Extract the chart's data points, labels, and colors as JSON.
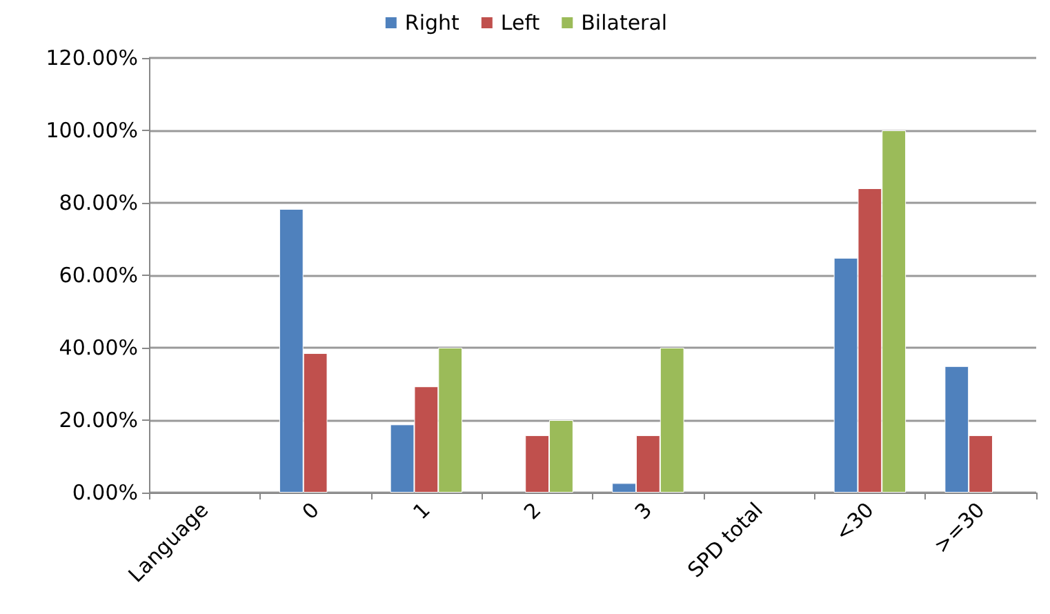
{
  "chart_data": {
    "type": "bar",
    "categories": [
      "Language",
      "0",
      "1",
      "2",
      "3",
      "SPD total",
      "<30",
      ">=30"
    ],
    "series": [
      {
        "name": "Right",
        "color": "#4f81bd",
        "values": [
          null,
          78.3,
          18.8,
          null,
          2.6,
          null,
          64.8,
          34.9
        ]
      },
      {
        "name": "Left",
        "color": "#c0504d",
        "values": [
          null,
          38.5,
          29.3,
          15.8,
          15.8,
          null,
          84.0,
          15.8
        ]
      },
      {
        "name": "Bilateral",
        "color": "#9bbb59",
        "values": [
          null,
          null,
          40,
          20,
          40,
          null,
          100,
          null
        ]
      }
    ],
    "ylim": [
      0,
      120
    ],
    "yticks": [
      {
        "value": 0,
        "label": "0.00%"
      },
      {
        "value": 20,
        "label": "20.00%"
      },
      {
        "value": 40,
        "label": "40.00%"
      },
      {
        "value": 60,
        "label": "60.00%"
      },
      {
        "value": 80,
        "label": "80.00%"
      },
      {
        "value": 100,
        "label": "100.00%"
      },
      {
        "value": 120,
        "label": "120.00%"
      }
    ],
    "grid": "y",
    "legend": "top"
  }
}
